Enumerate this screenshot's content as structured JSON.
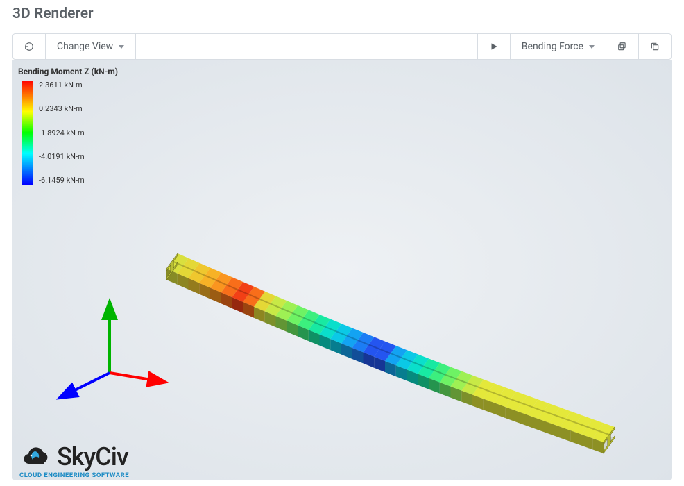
{
  "title": "3D Renderer",
  "toolbar": {
    "refresh_icon": "refresh",
    "change_view_label": "Change View",
    "play_icon": "play",
    "force_dropdown_label": "Bending Force",
    "action1_icon": "stack",
    "action2_icon": "copy"
  },
  "legend": {
    "title": "Bending Moment Z (kN-m)",
    "labels": [
      "2.3611 kN-m",
      "0.2343 kN-m",
      "-1.8924 kN-m",
      "-4.0191 kN-m",
      "-6.1459 kN-m"
    ],
    "gradient_stops": [
      "#ff0000",
      "#ff7f00",
      "#ffff00",
      "#00ff00",
      "#00ffff",
      "#007fff",
      "#0000ff"
    ]
  },
  "axes": {
    "x_color": "#ff0000",
    "y_color": "#00b400",
    "z_color": "#0000ff"
  },
  "beam": {
    "segment_colors": [
      "#d9e03e",
      "#e4d836",
      "#efc72e",
      "#f7b226",
      "#fa951f",
      "#f86e1a",
      "#f24016",
      "#f86e1a",
      "#e4d836",
      "#c8e946",
      "#9ef054",
      "#6ef264",
      "#3cef7e",
      "#18e9a2",
      "#0adfcb",
      "#0bc9e6",
      "#13a3f2",
      "#1c7df5",
      "#2455f0",
      "#2455f0",
      "#13a3f2",
      "#0bc9e6",
      "#0adfcb",
      "#18e9a2",
      "#3cef7e",
      "#6ef264",
      "#9ef054",
      "#c8e946",
      "#e4e83a",
      "#e4e83a",
      "#e4e83a",
      "#e4e83a",
      "#e4e83a",
      "#e4e83a",
      "#e4e83a",
      "#e4e83a",
      "#e4e83a",
      "#e4e83a",
      "#e4e83a",
      "#e4e83a"
    ],
    "segment_count": 40,
    "viewport_bg_inner": "#eef1f4",
    "viewport_bg_outer": "#dde3e9"
  },
  "logo": {
    "brand": "SkyCiv",
    "tagline": "CLOUD ENGINEERING SOFTWARE",
    "brand_color_text": "#222222",
    "brand_color_accent": "#1c8bc4"
  }
}
